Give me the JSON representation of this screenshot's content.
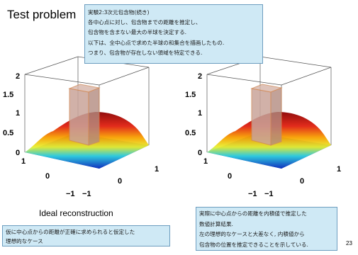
{
  "slide": {
    "title": "Test problem",
    "page_number": "23"
  },
  "top_note": {
    "lines": [
      "実験2:3次元包含物(続き)",
      "各中心点に対し、包含物までの距離を推定し、",
      "包含物を含まない最大の半球を決定する.",
      "以下は、全中心点で求めた半球の和集合を描画したもの.",
      "つまり、包含物が存在しない領域を特定できる."
    ]
  },
  "left_plot": {
    "caption": "Ideal reconstruction",
    "z_ticks": [
      "0",
      "0.5",
      "1",
      "1.5",
      "2"
    ],
    "left_ticks": [
      "1",
      "0",
      "−1"
    ],
    "right_ticks": [
      "1",
      "0",
      "−1"
    ]
  },
  "right_plot": {
    "z_ticks": [
      "0",
      "0.5",
      "1",
      "1.5",
      "2"
    ],
    "left_ticks": [
      "1",
      "0",
      "−1"
    ],
    "right_ticks": [
      "1",
      "0",
      "−1"
    ]
  },
  "left_note": {
    "lines": [
      "仮に中心点からの距離が正確に求められると仮定した",
      "理想的なケース"
    ]
  },
  "right_note": {
    "lines": [
      "実際に中心点からの距離を内積値で推定した",
      "数値計算結果.",
      "左の理想的なケースと大差なく, 内積値から",
      "包含物の位置を推定できることを示している."
    ]
  },
  "colors": {
    "callout_bg": "#cfe9f5",
    "callout_border": "#6d9dbf",
    "inclusion_fill": "#c9a49a",
    "inclusion_edge": "#d08a5a"
  }
}
